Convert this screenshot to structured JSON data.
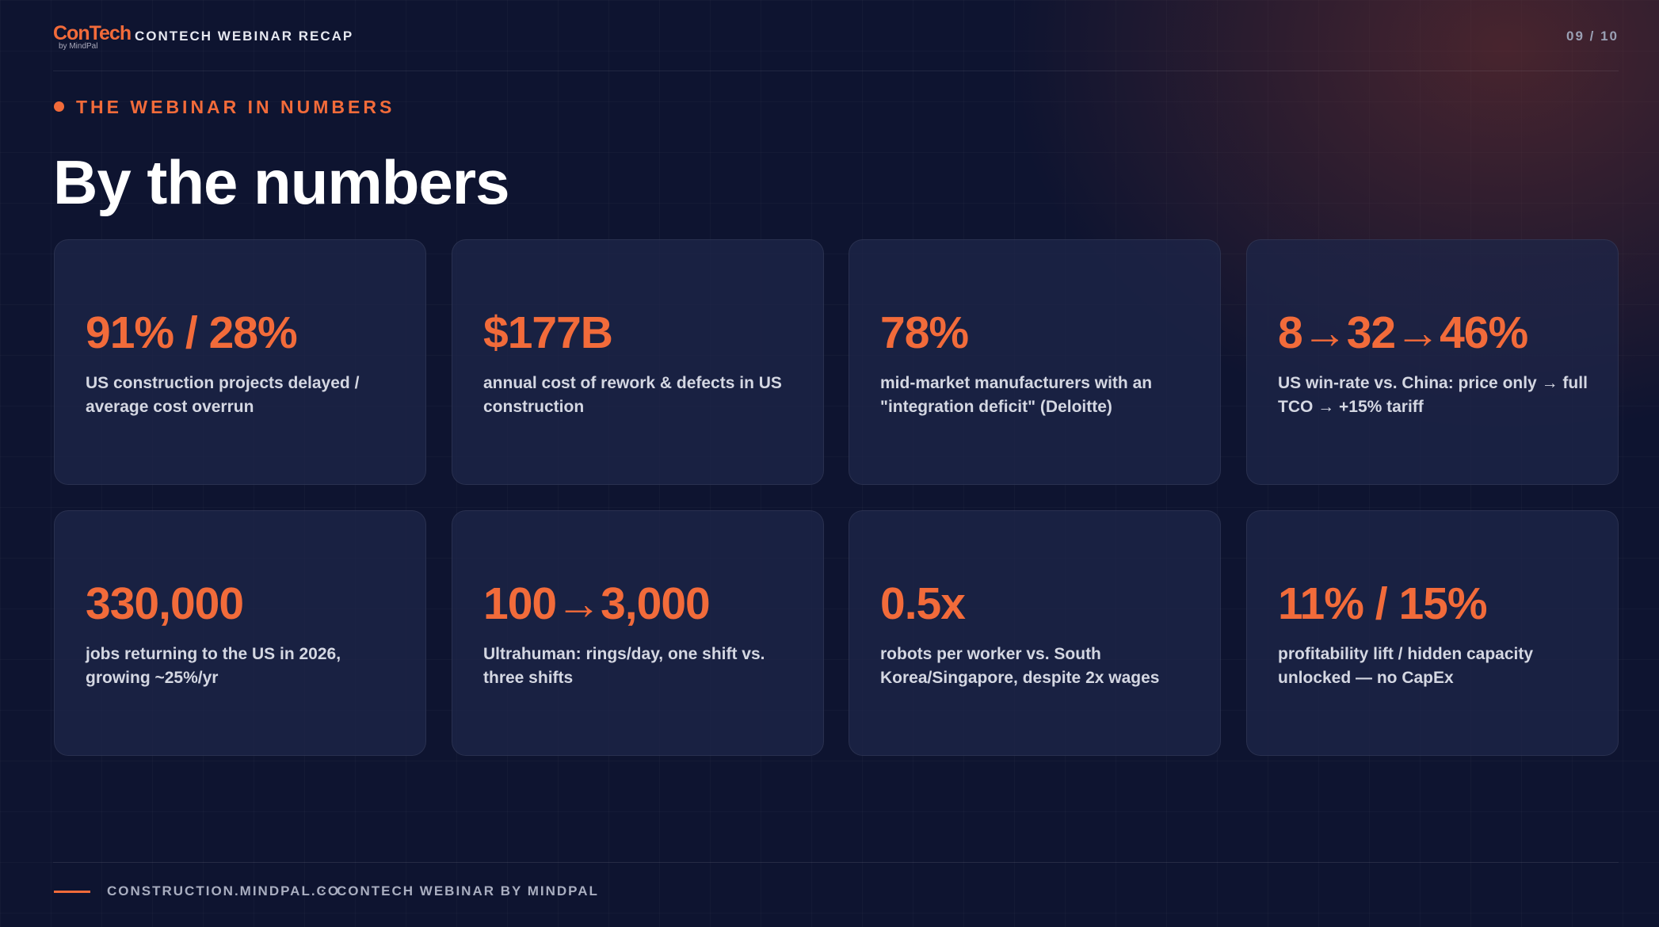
{
  "header": {
    "logo": "ConTech",
    "logo_sub": "by MindPal",
    "title": "CONTECH WEBINAR RECAP",
    "page": "09 / 10"
  },
  "eyebrow": "THE WEBINAR IN NUMBERS",
  "title": "By the numbers",
  "stats": [
    {
      "value": "91% / 28%",
      "label": "US construction projects delayed / average cost overrun"
    },
    {
      "value": "$177B",
      "label": "annual cost of rework & defects in US construction"
    },
    {
      "value": "78%",
      "label": "mid-market manufacturers with an \"integration deficit\" (Deloitte)"
    },
    {
      "value": "8→32→46%",
      "label": "US win-rate vs. China: price only → full TCO → +15% tariff"
    },
    {
      "value": "330,000",
      "label": "jobs returning to the US in 2026, growing ~25%/yr"
    },
    {
      "value": "100→3,000",
      "label": "Ultrahuman: rings/day, one shift vs. three shifts"
    },
    {
      "value": "0.5x",
      "label": "robots per worker vs. South Korea/Singapore, despite 2x wages"
    },
    {
      "value": "11% / 15%",
      "label": "profitability lift / hidden capacity unlocked — no CapEx"
    }
  ],
  "footer": {
    "site": "CONSTRUCTION.MINDPAL.CO",
    "separator": "·",
    "tagline": "CONTECH WEBINAR BY MINDPAL"
  }
}
